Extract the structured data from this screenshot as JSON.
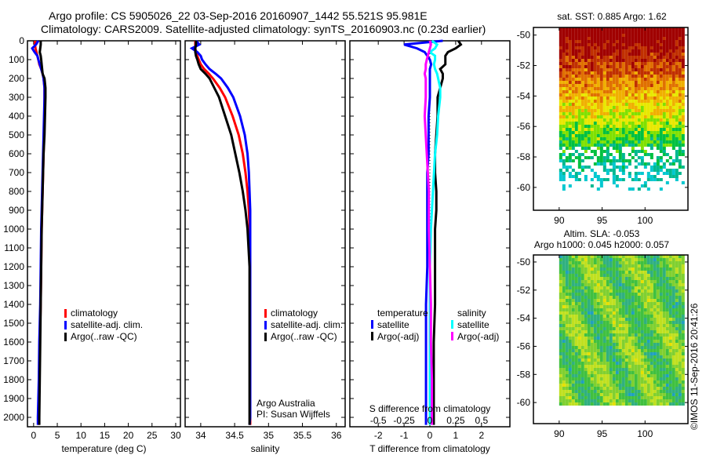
{
  "title_line1": "Argo profile: CS 5905026_22 03-Sep-2016 20160907_1442 55.521S 95.981E",
  "title_line2": "Climatology: CARS2009. Satellite-adjusted climatology: synTS_20160903.nc (0.23d earlier)",
  "footer_stamp": "©IMOS 11-Sep-2016 20:41:26",
  "colors": {
    "climatology": "#ff0000",
    "satellite": "#0000ff",
    "argo": "#000000",
    "sal_satellite": "#00ffff",
    "sal_argo": "#ff00ff"
  },
  "chart_data": [
    {
      "type": "line",
      "id": "temperature",
      "xlabel": "temperature (deg C)",
      "ylabel": "",
      "xlim": [
        -1.3,
        31
      ],
      "ylim": [
        2050,
        0
      ],
      "xticks": [
        0,
        5,
        10,
        15,
        20,
        25,
        30
      ],
      "yticks": [
        0,
        100,
        200,
        300,
        400,
        500,
        600,
        700,
        800,
        900,
        1000,
        1100,
        1200,
        1300,
        1400,
        1500,
        1600,
        1700,
        1800,
        1900,
        2000
      ],
      "depth": [
        0,
        20,
        40,
        60,
        80,
        100,
        125,
        150,
        175,
        200,
        250,
        300,
        400,
        500,
        600,
        700,
        800,
        900,
        1000,
        1200,
        1400,
        1600,
        1800,
        2000,
        2040
      ],
      "legend": [
        "climatology",
        "satellite-adj. clim.",
        "Argo(..raw -QC)"
      ],
      "series": [
        {
          "name": "climatology",
          "color": "#ff0000",
          "values": [
            0.3,
            0.3,
            0.4,
            0.6,
            0.8,
            1.0,
            1.2,
            1.6,
            1.9,
            2.1,
            2.3,
            2.3,
            2.3,
            2.2,
            2.1,
            2.0,
            1.9,
            1.8,
            1.7,
            1.6,
            1.5,
            1.3,
            1.2,
            1.1,
            1.0
          ]
        },
        {
          "name": "satellite-adj. clim.",
          "color": "#0000ff",
          "values": [
            1.0,
            0.5,
            -0.3,
            0.2,
            0.8,
            1.0,
            1.3,
            1.6,
            1.9,
            2.1,
            2.3,
            2.3,
            2.2,
            2.1,
            2.0,
            1.9,
            1.8,
            1.7,
            1.6,
            1.5,
            1.4,
            1.2,
            1.1,
            0.9,
            0.9
          ]
        },
        {
          "name": "Argo(..raw -QC)",
          "color": "#000000",
          "values": [
            1.5,
            1.5,
            1.4,
            1.3,
            1.5,
            1.6,
            1.7,
            1.8,
            1.9,
            2.3,
            2.5,
            2.5,
            2.4,
            2.3,
            2.1,
            2.0,
            1.9,
            1.8,
            1.7,
            1.6,
            1.5,
            1.4,
            1.3,
            1.2,
            1.2
          ]
        }
      ]
    },
    {
      "type": "line",
      "id": "salinity",
      "xlabel": "salinity",
      "xlim": [
        33.77,
        36.13
      ],
      "ylim": [
        2050,
        0
      ],
      "xticks": [
        34,
        34.5,
        35,
        35.5,
        36
      ],
      "legend": [
        "climatology",
        "satellite-adj. clim.",
        "Argo(..raw -QC)"
      ],
      "annotation": [
        "Argo Australia",
        "PI: Susan Wijffels"
      ],
      "series": [
        {
          "name": "climatology",
          "color": "#ff0000",
          "values": [
            33.92,
            33.92,
            33.92,
            33.93,
            33.95,
            33.97,
            34.0,
            34.05,
            34.12,
            34.18,
            34.28,
            34.36,
            34.47,
            34.56,
            34.62,
            34.66,
            34.69,
            34.71,
            34.72,
            34.73,
            34.73,
            34.73,
            34.73,
            34.73,
            34.73
          ]
        },
        {
          "name": "satellite-adj. clim.",
          "color": "#0000ff",
          "values": [
            33.93,
            33.98,
            33.87,
            33.95,
            34.0,
            34.02,
            34.07,
            34.13,
            34.22,
            34.3,
            34.4,
            34.48,
            34.58,
            34.65,
            34.69,
            34.71,
            34.72,
            34.73,
            34.73,
            34.73,
            34.73,
            34.73,
            34.73,
            34.73,
            34.72
          ]
        },
        {
          "name": "Argo(..raw -QC)",
          "color": "#000000",
          "values": [
            33.93,
            33.93,
            33.92,
            33.92,
            33.93,
            33.95,
            33.97,
            34.0,
            34.07,
            34.13,
            34.2,
            34.27,
            34.36,
            34.45,
            34.51,
            34.57,
            34.62,
            34.66,
            34.69,
            34.72,
            34.72,
            34.72,
            34.72,
            34.72,
            34.72
          ]
        }
      ]
    },
    {
      "type": "line",
      "id": "difference",
      "xlabel": "T difference from climatology",
      "xlabel_top": "S difference from climatology",
      "xlim": [
        -3.1,
        3.1
      ],
      "ylim": [
        2050,
        0
      ],
      "xticks": [
        -2,
        -1,
        0,
        1,
        2
      ],
      "xticks_s": [
        -0.5,
        -0.25,
        0,
        0.25,
        0.5
      ],
      "s_scale": 4,
      "legend_temperature": {
        "title": "temperature",
        "items": [
          "satellite",
          "Argo(-adj)"
        ]
      },
      "legend_salinity": {
        "title": "salinity",
        "items": [
          "satellite",
          "Argo(-adj)"
        ]
      },
      "series": [
        {
          "name": "T satellite",
          "color": "#0000ff",
          "units": "T",
          "values": [
            0.5,
            -1.0,
            -0.5,
            -0.2,
            -0.1,
            0,
            0.05,
            0,
            0,
            0,
            0,
            0,
            -0.05,
            -0.05,
            -0.05,
            -0.1,
            -0.1,
            -0.1,
            -0.1,
            -0.1,
            -0.15,
            -0.15,
            -0.15,
            -0.15,
            -0.15
          ]
        },
        {
          "name": "T Argo(-adj)",
          "color": "#000000",
          "units": "T",
          "values": [
            1.1,
            1.2,
            1.0,
            0.7,
            0.6,
            0.6,
            0.6,
            0.4,
            0.5,
            0.5,
            0.4,
            0.3,
            0.3,
            0.25,
            0.2,
            0.2,
            0.25,
            0.25,
            0.2,
            0.2,
            0.2,
            0.15,
            0.15,
            0.15,
            0.15
          ]
        },
        {
          "name": "S satellite",
          "color": "#00ffff",
          "units": "S",
          "values": [
            0.02,
            0.07,
            0.05,
            0.0,
            0.05,
            0.05,
            0.04,
            0.05,
            0.07,
            0.08,
            0.1,
            0.1,
            0.08,
            0.07,
            0.05,
            0.04,
            0.03,
            0.02,
            0.01,
            0.0,
            0.0,
            0.0,
            0.0,
            0.0,
            0.0
          ]
        },
        {
          "name": "S Argo(-adj)",
          "color": "#ff00ff",
          "units": "S",
          "values": [
            0.0,
            0.01,
            0.0,
            -0.01,
            -0.02,
            -0.03,
            -0.04,
            -0.04,
            -0.05,
            -0.04,
            -0.04,
            -0.04,
            -0.05,
            -0.04,
            -0.03,
            -0.02,
            -0.01,
            -0.01,
            -0.01,
            0.0,
            0.01,
            0.01,
            0.02,
            0.02,
            0.02
          ]
        }
      ]
    },
    {
      "type": "heatmap",
      "id": "sst_map",
      "title": "sat. SST: 0.885 Argo: 1.62",
      "xlim": [
        87,
        105
      ],
      "ylim": [
        -61.5,
        -49.5
      ],
      "xticks": [
        90,
        95,
        100
      ],
      "yticks": [
        -50,
        -52,
        -54,
        -56,
        -58,
        -60
      ]
    },
    {
      "type": "heatmap",
      "id": "sla_map",
      "title_line1": "Altim. SLA: -0.053",
      "title_line2": "Argo h1000: 0.045 h2000: 0.057",
      "xlim": [
        87,
        105
      ],
      "ylim": [
        -61.5,
        -49.5
      ],
      "xticks": [
        90,
        95,
        100
      ],
      "yticks": [
        -50,
        -52,
        -54,
        -56,
        -58,
        -60
      ]
    }
  ]
}
